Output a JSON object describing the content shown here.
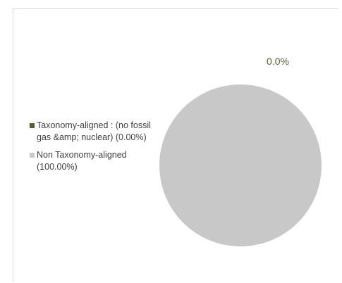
{
  "chart_data": {
    "type": "pie",
    "title": "",
    "categories": [
      "Taxonomy-aligned : (no fossil gas &amp; nuclear) (0.00%)",
      "Non Taxonomy-aligned (100.00%)"
    ],
    "values": [
      0.0,
      100.0
    ],
    "data_labels": [
      "0.0%",
      ""
    ],
    "colors": [
      "#4f6228",
      "#c8c8c8"
    ],
    "label_color": "#4f6228",
    "legend_position": "left"
  }
}
